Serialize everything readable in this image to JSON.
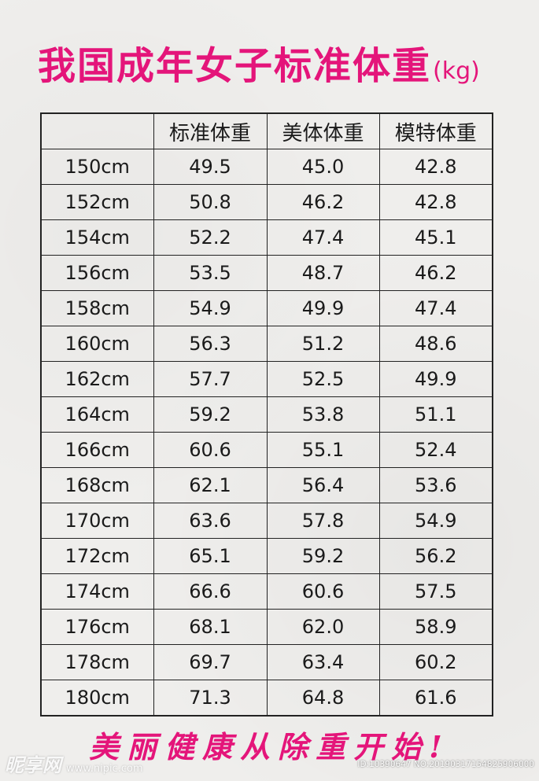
{
  "title": {
    "text": "我国成年女子标准体重",
    "unit": "(kg)"
  },
  "table": {
    "headers": [
      "",
      "标准体重",
      "美体体重",
      "模特体重"
    ],
    "rows": [
      [
        "150cm",
        "49.5",
        "45.0",
        "42.8"
      ],
      [
        "152cm",
        "50.8",
        "46.2",
        "42.8"
      ],
      [
        "154cm",
        "52.2",
        "47.4",
        "45.1"
      ],
      [
        "156cm",
        "53.5",
        "48.7",
        "46.2"
      ],
      [
        "158cm",
        "54.9",
        "49.9",
        "47.4"
      ],
      [
        "160cm",
        "56.3",
        "51.2",
        "48.6"
      ],
      [
        "162cm",
        "57.7",
        "52.5",
        "49.9"
      ],
      [
        "164cm",
        "59.2",
        "53.8",
        "51.1"
      ],
      [
        "166cm",
        "60.6",
        "55.1",
        "52.4"
      ],
      [
        "168cm",
        "62.1",
        "56.4",
        "53.6"
      ],
      [
        "170cm",
        "63.6",
        "57.8",
        "54.9"
      ],
      [
        "172cm",
        "65.1",
        "59.2",
        "56.2"
      ],
      [
        "174cm",
        "66.6",
        "60.6",
        "57.5"
      ],
      [
        "176cm",
        "68.1",
        "62.0",
        "58.9"
      ],
      [
        "178cm",
        "69.7",
        "63.4",
        "60.2"
      ],
      [
        "180cm",
        "71.3",
        "64.8",
        "61.6"
      ]
    ]
  },
  "slogan": "美丽健康从除重开始!",
  "watermark": {
    "logo": "昵享网",
    "site": "www.nipic.com",
    "id": "ID:10390647 NO:20190317154825906000"
  },
  "colors": {
    "accent": "#e4157a",
    "text": "#1a1a1a",
    "background": "#efeeec"
  }
}
